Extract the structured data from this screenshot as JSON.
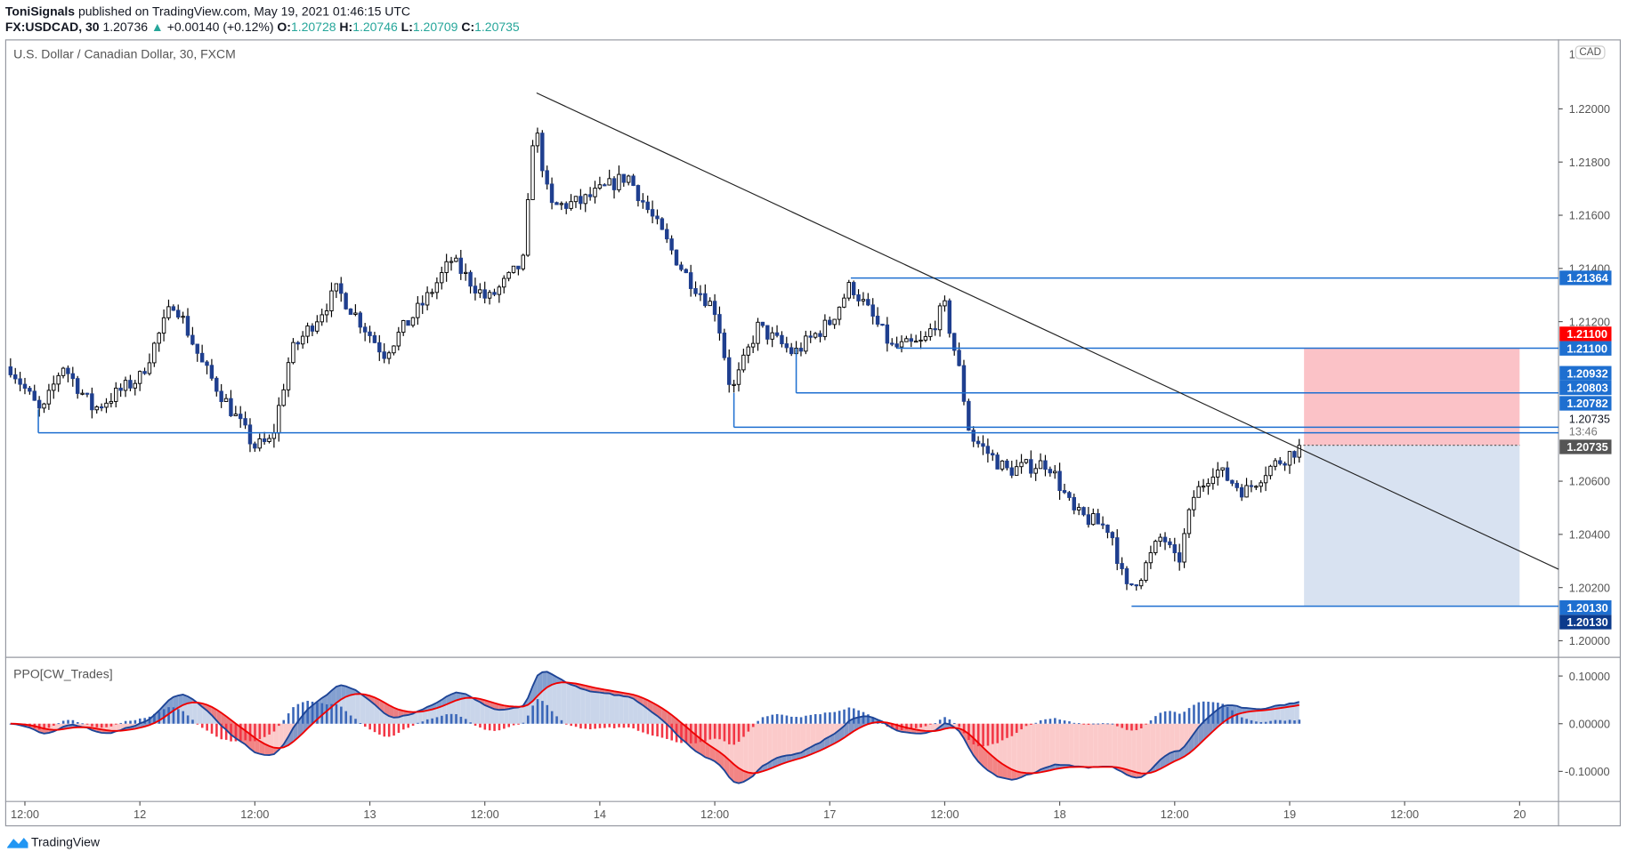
{
  "header": {
    "publisher": "ToniSignals",
    "published_text": "published on TradingView.com, May 19, 2021 01:46:15 UTC",
    "symbol": "FX:USDCAD, 30",
    "last": "1.20736",
    "change": "+0.00140 (+0.12%)",
    "o_label": "O:",
    "o": "1.20728",
    "h_label": "H:",
    "h": "1.20746",
    "l_label": "L:",
    "l": "1.20709",
    "c_label": "C:",
    "c": "1.20735"
  },
  "chart": {
    "title": "U.S. Dollar / Canadian Dollar, 30, FXCM",
    "currency": "CAD",
    "ppo_title": "PPO[CW_Trades]",
    "countdown": "13:46",
    "top_tick": "1.2"
  },
  "footer": {
    "brand": "TradingView"
  },
  "colors": {
    "up": "#ffffff",
    "down": "#1f3f8f",
    "line": "#1e6fd0",
    "stop": "#f23645",
    "label_dark": "#0d3b8c",
    "current": "#555555"
  },
  "chart_data": {
    "type": "line",
    "title": "U.S. Dollar / Canadian Dollar, 30, FXCM",
    "xlabel": "",
    "ylabel": "",
    "ylim": [
      1.2,
      1.2215
    ],
    "price_ticks": [
      "1.22000",
      "1.21800",
      "1.21600",
      "1.21400",
      "1.21200",
      "1.20600",
      "1.20400",
      "1.20200",
      "1.20000"
    ],
    "price_tick_values": [
      1.22,
      1.218,
      1.216,
      1.214,
      1.212,
      1.206,
      1.204,
      1.202,
      1.2
    ],
    "time_ticks": [
      "12:00",
      "12",
      "12:00",
      "13",
      "12:00",
      "14",
      "12:00",
      "17",
      "12:00",
      "18",
      "12:00",
      "19",
      "12:00",
      "20"
    ],
    "time_tick_bars": [
      0,
      24,
      48,
      72,
      96,
      120,
      144,
      168,
      192,
      216,
      240,
      264,
      288,
      312
    ],
    "close_waypoints": [
      [
        -3,
        1.2103
      ],
      [
        3.5,
        1.2085
      ],
      [
        7.8,
        1.2104
      ],
      [
        14.3,
        1.2087
      ],
      [
        24,
        1.2099
      ],
      [
        31.2,
        1.2128
      ],
      [
        37,
        1.2104
      ],
      [
        47.9,
        1.2073
      ],
      [
        51.5,
        1.2075
      ],
      [
        55.4,
        1.2108
      ],
      [
        65.2,
        1.2132
      ],
      [
        74.9,
        1.2108
      ],
      [
        83.6,
        1.2128
      ],
      [
        89,
        1.2143
      ],
      [
        96.6,
        1.2128
      ],
      [
        100.9,
        1.2136
      ],
      [
        104.2,
        1.2143
      ],
      [
        106.3,
        1.2196
      ],
      [
        109.6,
        1.2163
      ],
      [
        116.1,
        1.2165
      ],
      [
        125.8,
        1.2175
      ],
      [
        132.3,
        1.2155
      ],
      [
        137.8,
        1.2138
      ],
      [
        144.3,
        1.2124
      ],
      [
        147.5,
        1.2093
      ],
      [
        152.9,
        1.2118
      ],
      [
        160.5,
        1.2108
      ],
      [
        168.1,
        1.212
      ],
      [
        172.4,
        1.2134
      ],
      [
        181.1,
        1.211
      ],
      [
        187.6,
        1.2112
      ],
      [
        191.9,
        1.2126
      ],
      [
        195.1,
        1.2101
      ],
      [
        197.3,
        1.2077
      ],
      [
        204.9,
        1.2064
      ],
      [
        213.6,
        1.2067
      ],
      [
        219,
        1.2048
      ],
      [
        226.6,
        1.2042
      ],
      [
        229.8,
        1.2019
      ],
      [
        233,
        1.2025
      ],
      [
        237.4,
        1.204
      ],
      [
        240.6,
        1.2028
      ],
      [
        243.9,
        1.2054
      ],
      [
        248.2,
        1.2065
      ],
      [
        254.7,
        1.2056
      ],
      [
        259,
        1.2064
      ],
      [
        266.6,
        1.20735
      ]
    ],
    "levels": [
      {
        "price": 1.21364,
        "label": "1.21364",
        "from_bar": 172.4
      },
      {
        "price": 1.211,
        "label": "1.21100",
        "from_bar": 182
      },
      {
        "price": 1.20932,
        "label": "1.20932",
        "from_bar": 161
      },
      {
        "price": 1.20803,
        "label": "1.20803",
        "from_bar": 148
      },
      {
        "price": 1.20782,
        "label": "1.20782",
        "from_bar": 2.8
      },
      {
        "price": 1.2013,
        "label": "1.20130",
        "from_bar": 231
      }
    ],
    "trendline": [
      [
        106.8,
        1.2206
      ],
      [
        320,
        1.2027
      ]
    ],
    "position": {
      "entry": 1.20735,
      "stop": 1.211,
      "target": 1.2013,
      "from_bar": 267,
      "to_bar": 312,
      "stop_label": "1.21100",
      "target_label": "1.20130",
      "entry_label": "1.20735",
      "last_label": "1.20735"
    },
    "ppo_ticks": [
      "0.10000",
      "0.00000",
      "-0.10000"
    ],
    "ppo_tick_values": [
      0.1,
      0,
      -0.1
    ]
  }
}
